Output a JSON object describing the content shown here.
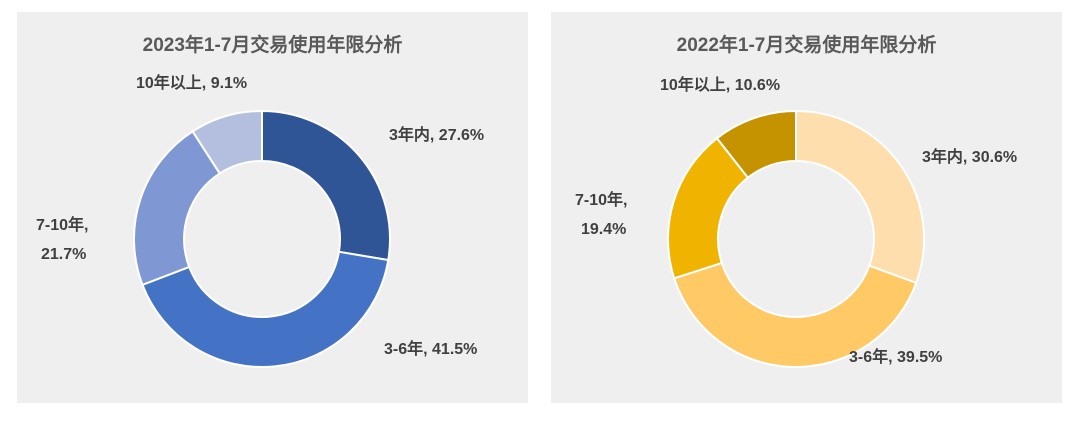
{
  "chart_data": [
    {
      "type": "pie",
      "title": "2023年1-7月交易使用年限分析",
      "categories": [
        "3年内",
        "3-6年",
        "7-10年",
        "10年以上"
      ],
      "values": [
        27.6,
        41.5,
        21.7,
        9.1
      ],
      "unit": "%",
      "colors": [
        "#2f5597",
        "#4472c4",
        "#7f97d3",
        "#b4bfe0"
      ],
      "labels": {
        "l0": "3年内, 27.6%",
        "l1": "3-6年, 41.5%",
        "l2a": "7-10年,",
        "l2b": "21.7%",
        "l3": "10年以上, 9.1%"
      },
      "legend": "none"
    },
    {
      "type": "pie",
      "title": "2022年1-7月交易使用年限分析",
      "categories": [
        "3年内",
        "3-6年",
        "7-10年",
        "10年以上"
      ],
      "values": [
        30.6,
        39.5,
        19.4,
        10.6
      ],
      "unit": "%",
      "colors": [
        "#ffdead",
        "#ffc966",
        "#f0b400",
        "#c69300"
      ],
      "labels": {
        "l0": "3年内, 30.6%",
        "l1": "3-6年, 39.5%",
        "l2a": "7-10年,",
        "l2b": "19.4%",
        "l3": "10年以上, 10.6%"
      },
      "legend": "none"
    }
  ]
}
